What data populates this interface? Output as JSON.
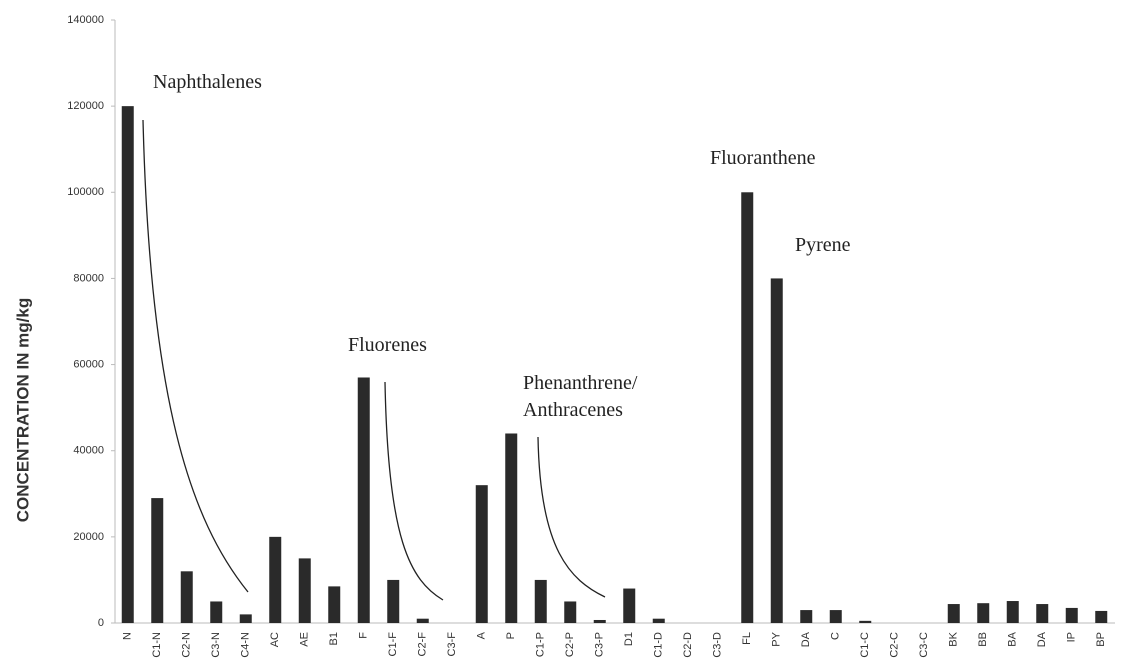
{
  "chart_data": {
    "type": "bar",
    "y_label": "CONCENTRATION IN mg/kg",
    "categories": [
      "N",
      "C1-N",
      "C2-N",
      "C3-N",
      "C4-N",
      "AC",
      "AE",
      "B1",
      "F",
      "C1-F",
      "C2-F",
      "C3-F",
      "A",
      "P",
      "C1-P",
      "C2-P",
      "C3-P",
      "D1",
      "C1-D",
      "C2-D",
      "C3-D",
      "FL",
      "PY",
      "DA",
      "C",
      "C1-C",
      "C2-C",
      "C3-C",
      "BK",
      "BB",
      "BA",
      "DA",
      "IP",
      "BP"
    ],
    "values": [
      120000,
      29000,
      12000,
      5000,
      2000,
      20000,
      15000,
      8500,
      57000,
      10000,
      1000,
      0,
      32000,
      44000,
      10000,
      5000,
      700,
      8000,
      1000,
      0,
      0,
      100000,
      80000,
      3000,
      3000,
      500,
      0,
      0,
      4400,
      4600,
      5100,
      4400,
      3500,
      2800
    ],
    "color": "#2a2a2a",
    "ylim": [
      0,
      140000
    ],
    "yticks": [
      0,
      20000,
      40000,
      60000,
      80000,
      100000,
      120000,
      140000
    ],
    "annotations": [
      "Naphthalenes",
      "Fluorenes",
      "Phenanthrene/",
      "Anthracenes",
      "Fluoranthene",
      "Pyrene"
    ]
  }
}
